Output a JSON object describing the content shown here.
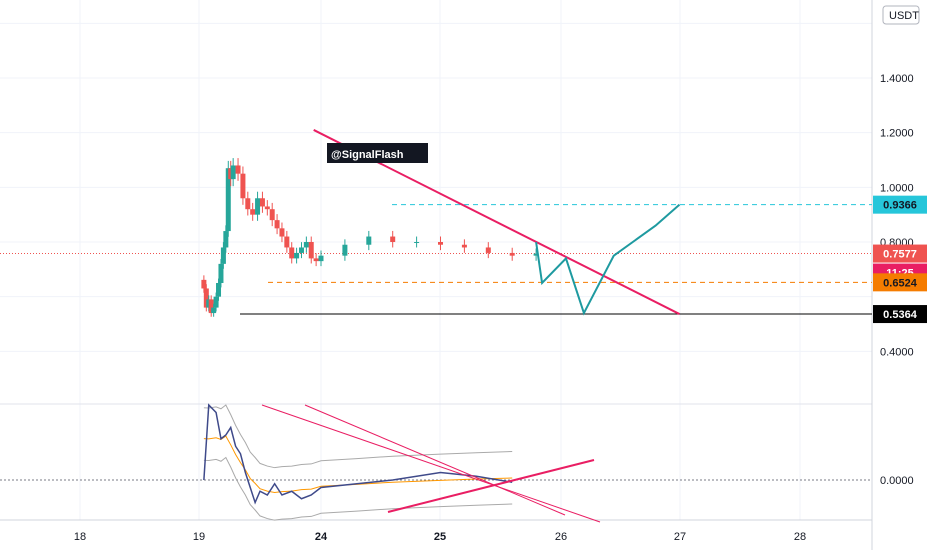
{
  "quote_currency": "USDT",
  "watermark_label": "@SignalFlash",
  "colors": {
    "up": "#26a69a",
    "down": "#ef5350",
    "trendline": "#e91e63",
    "projection": "#1e9aa0",
    "entry_line": "#f57c00",
    "target_line": "#26c6da",
    "support_line": "#000000",
    "bb_band": "#aaaaaa",
    "bb_basis": "#ff9800",
    "oscillator": "#3f4a8a",
    "grid": "#f0f3fa"
  },
  "chart_data": {
    "type": "line",
    "title": "",
    "price_axis": {
      "ticks": [
        "1.4000",
        "1.2000",
        "1.0000",
        "0.8000",
        "0.4000"
      ],
      "tick_values": [
        1.4,
        1.2,
        1.0,
        0.8,
        0.4
      ]
    },
    "time_axis": {
      "ticks": [
        "18",
        "19",
        "24",
        "25",
        "26",
        "27",
        "28"
      ],
      "bold_ticks": [
        "24",
        "25"
      ]
    },
    "price_series": {
      "name": "",
      "x": [
        19.2,
        19.3,
        19.4,
        19.5,
        19.6,
        19.7,
        19.8,
        19.9,
        20.0,
        20.1,
        20.2,
        20.3,
        20.4,
        20.6,
        20.8,
        21.0,
        21.2,
        21.4,
        21.6,
        21.8,
        22.0,
        22.2,
        22.4,
        22.6,
        22.8,
        23.0,
        23.2,
        23.4,
        23.6,
        23.8,
        24.0,
        24.2,
        24.4,
        24.6,
        24.8,
        25.0,
        25.2,
        25.4,
        25.6,
        25.8
      ],
      "y": [
        0.63,
        0.56,
        0.59,
        0.54,
        0.56,
        0.6,
        0.65,
        0.72,
        0.78,
        0.84,
        1.07,
        1.03,
        1.08,
        1.05,
        0.96,
        0.92,
        0.9,
        0.96,
        0.93,
        0.92,
        0.88,
        0.85,
        0.82,
        0.78,
        0.74,
        0.76,
        0.78,
        0.8,
        0.74,
        0.73,
        0.75,
        0.79,
        0.82,
        0.8,
        0.8,
        0.79,
        0.78,
        0.76,
        0.75,
        0.7577
      ]
    },
    "price_labels": [
      {
        "label": "0.9366",
        "value": 0.9366,
        "role": "target"
      },
      {
        "label": "0.7577",
        "value": 0.7577,
        "role": "last"
      },
      {
        "label": "11:25",
        "value": 0.7577,
        "role": "countdown"
      },
      {
        "label": "0.6524",
        "value": 0.6524,
        "role": "entry"
      },
      {
        "label": "0.5364",
        "value": 0.5364,
        "role": "support"
      }
    ],
    "trendline": {
      "x": [
        23.7,
        27.0
      ],
      "y": [
        1.21,
        0.5364
      ]
    },
    "projection_path": {
      "x": [
        25.8,
        25.85,
        26.05,
        26.2,
        26.45,
        26.8,
        27.0
      ],
      "y": [
        0.8,
        0.65,
        0.74,
        0.54,
        0.75,
        0.86,
        0.9366
      ]
    },
    "oscillator_panel": {
      "zero_label": "0.0000",
      "series": {
        "x": [
          19.2,
          19.4,
          19.7,
          19.9,
          20.1,
          20.3,
          20.5,
          20.7,
          20.9,
          21.1,
          21.3,
          21.5,
          21.8,
          22.1,
          22.4,
          22.8,
          23.2,
          23.6,
          24.0,
          24.3,
          24.6,
          25.0,
          25.3,
          25.6
        ],
        "y": [
          0.0,
          1.0,
          0.9,
          0.55,
          0.6,
          0.7,
          0.45,
          0.35,
          0.1,
          -0.1,
          -0.3,
          -0.15,
          -0.2,
          -0.05,
          -0.2,
          -0.15,
          -0.25,
          -0.2,
          -0.1,
          -0.05,
          0.0,
          0.1,
          0.05,
          -0.03
        ]
      }
    }
  }
}
